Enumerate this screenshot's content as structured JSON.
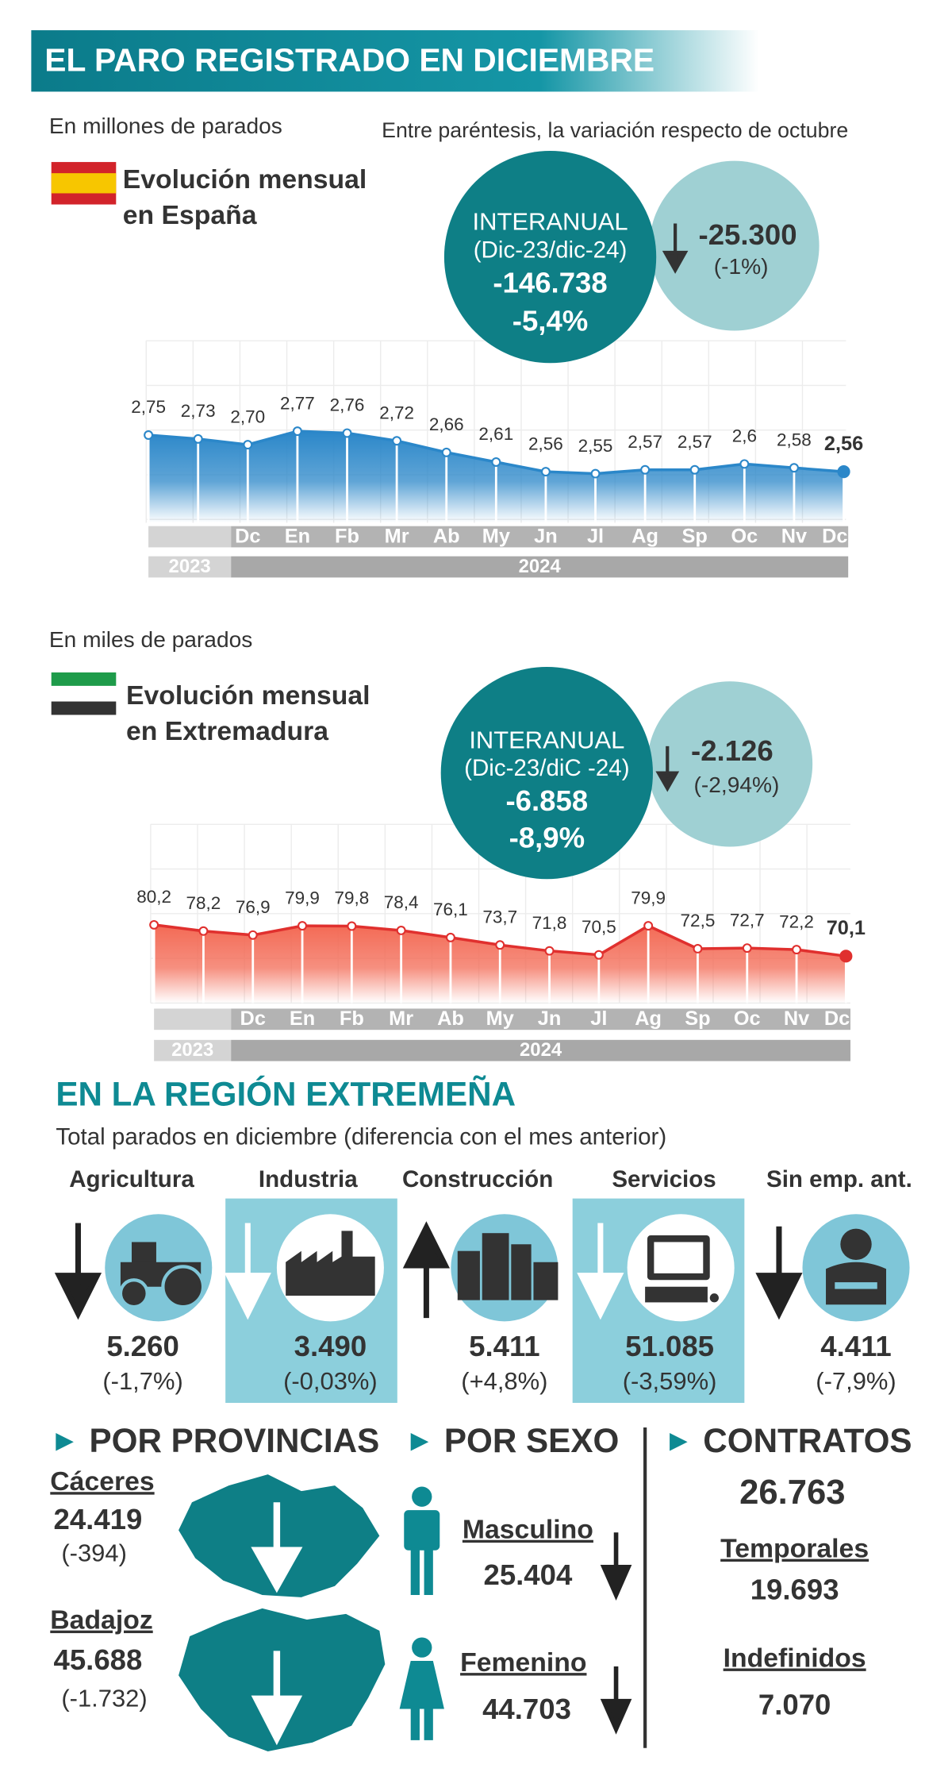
{
  "header": {
    "title": "EL PARO REGISTRADO EN DICIEMBRE"
  },
  "spain": {
    "unit_note": "En millones de parados",
    "variation_note": "Entre paréntesis, la variación respecto de octubre",
    "heading": [
      "Evolución mensual",
      "en España"
    ],
    "interanual": {
      "label": "INTERANUAL",
      "period": "(Dic-23/dic-24)",
      "value": "-146.738",
      "percent": "-5,4%"
    },
    "monthly": {
      "value": "-25.300",
      "percent": "(-1%)"
    }
  },
  "extremadura": {
    "unit_note": "En miles de parados",
    "heading": [
      "Evolución mensual",
      "en Extremadura"
    ],
    "interanual": {
      "label": "INTERANUAL",
      "period": "(Dic-23/diC -24)",
      "value": "-6.858",
      "percent": "-8,9%"
    },
    "monthly": {
      "value": "-2.126",
      "percent": "(-2,94%)"
    }
  },
  "chart_data": [
    {
      "type": "area",
      "color": "#2b87c9",
      "line_color": "#2b87c9",
      "categories": [
        null,
        null,
        "Dc",
        "En",
        "Fb",
        "Mr",
        "Ab",
        "My",
        "Jn",
        "Jl",
        "Ag",
        "Sp",
        "Oc",
        "Nv",
        "Dc"
      ],
      "values": [
        2.75,
        2.73,
        2.7,
        2.77,
        2.76,
        2.72,
        2.66,
        2.61,
        2.56,
        2.55,
        2.57,
        2.57,
        2.6,
        2.58,
        2.56
      ],
      "value_labels": [
        "2,75",
        "2,73",
        "2,70",
        "2,77",
        "2,76",
        "2,72",
        "2,66",
        "2,61",
        "2,56",
        "2,55",
        "2,57",
        "2,57",
        "2,6",
        "2,58",
        "2,56"
      ],
      "periods": [
        "2023",
        "2024"
      ]
    },
    {
      "type": "area",
      "color": "#f36a55",
      "line_color": "#e0302e",
      "categories": [
        null,
        null,
        "Dc",
        "En",
        "Fb",
        "Mr",
        "Ab",
        "My",
        "Jn",
        "Jl",
        "Ag",
        "Sp",
        "Oc",
        "Nv",
        "Dc"
      ],
      "values": [
        80.2,
        78.2,
        76.9,
        79.9,
        79.8,
        78.4,
        76.1,
        73.7,
        71.8,
        70.5,
        79.9,
        72.5,
        72.7,
        72.2,
        70.1
      ],
      "value_labels": [
        "80,2",
        "78,2",
        "76,9",
        "79,9",
        "79,8",
        "78,4",
        "76,1",
        "73,7",
        "71,8",
        "70,5",
        "79,9",
        "72,5",
        "72,7",
        "72,2",
        "70,1"
      ],
      "periods": [
        "2023",
        "2024"
      ]
    }
  ],
  "region": {
    "title": "EN LA REGIÓN EXTREMEÑA",
    "subtitle": "Total parados en diciembre (diferencia con el mes anterior)",
    "sectors": [
      {
        "name": "Agricultura",
        "value": "5.260",
        "change": "(-1,7%)"
      },
      {
        "name": "Industria",
        "value": "3.490",
        "change": "(-0,03%)"
      },
      {
        "name": "Construcción",
        "value": "5.411",
        "change": "(+4,8%)"
      },
      {
        "name": "Servicios",
        "value": "51.085",
        "change": "(-3,59%)"
      },
      {
        "name": "Sin emp. ant.",
        "value": "4.411",
        "change": "(-7,9%)"
      }
    ]
  },
  "provinces": {
    "title": "POR PROVINCIAS",
    "items": [
      {
        "name": "Cáceres",
        "value": "24.419",
        "change": "(-394)"
      },
      {
        "name": "Badajoz",
        "value": "45.688",
        "change": "(-1.732)"
      }
    ]
  },
  "sex": {
    "title": "POR SEXO",
    "items": [
      {
        "name": "Masculino",
        "value": "25.404"
      },
      {
        "name": "Femenino",
        "value": "44.703"
      }
    ]
  },
  "contracts": {
    "title": "CONTRATOS",
    "total": "26.763",
    "items": [
      {
        "name": "Temporales",
        "value": "19.693"
      },
      {
        "name": "Indefinidos",
        "value": "7.070"
      }
    ]
  }
}
